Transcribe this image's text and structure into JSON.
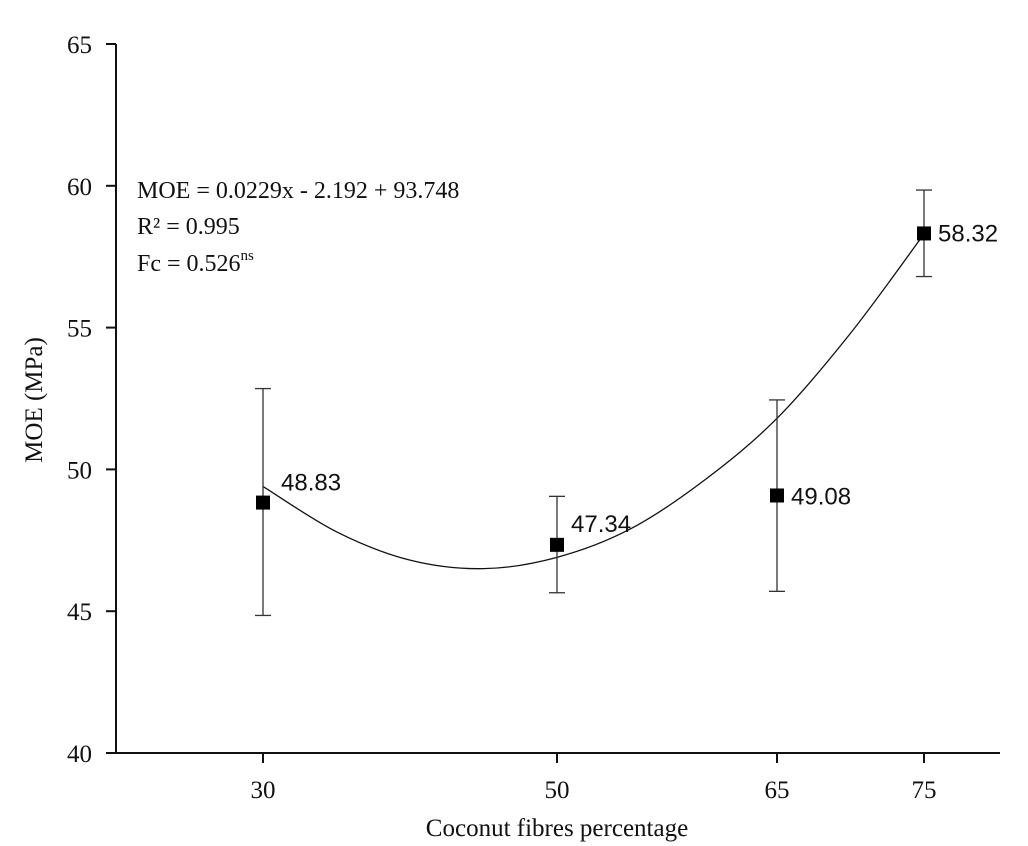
{
  "chart_data": {
    "type": "scatter",
    "xlabel": "Coconut fibres percentage",
    "ylabel": "MOE (MPa)",
    "ylim": [
      40,
      65
    ],
    "y_ticks": [
      40,
      45,
      50,
      55,
      60,
      65
    ],
    "x_ticks": [
      30,
      50,
      65,
      75
    ],
    "grid": false,
    "series": [
      {
        "x": [
          30,
          50,
          65,
          75
        ],
        "y": [
          48.83,
          47.34,
          49.08,
          58.32
        ],
        "error_high": [
          52.85,
          49.05,
          52.45,
          59.85
        ],
        "error_low": [
          44.85,
          45.65,
          45.7,
          56.8
        ],
        "data_labels": [
          "48.83",
          "47.34",
          "49.08",
          "58.32"
        ]
      }
    ],
    "trend_curve": {
      "x": [
        30,
        35,
        40,
        45,
        50,
        55,
        60,
        65,
        70,
        75
      ],
      "y": [
        49.4,
        47.8,
        46.8,
        46.5,
        46.9,
        47.9,
        49.6,
        51.8,
        54.8,
        58.3
      ]
    },
    "annotation": {
      "equation": "MOE = 0.0229x - 2.192 + 93.748",
      "r_squared": "R² = 0.995",
      "fc_prefix": "Fc = 0.526",
      "fc_superscript": "ns"
    }
  }
}
